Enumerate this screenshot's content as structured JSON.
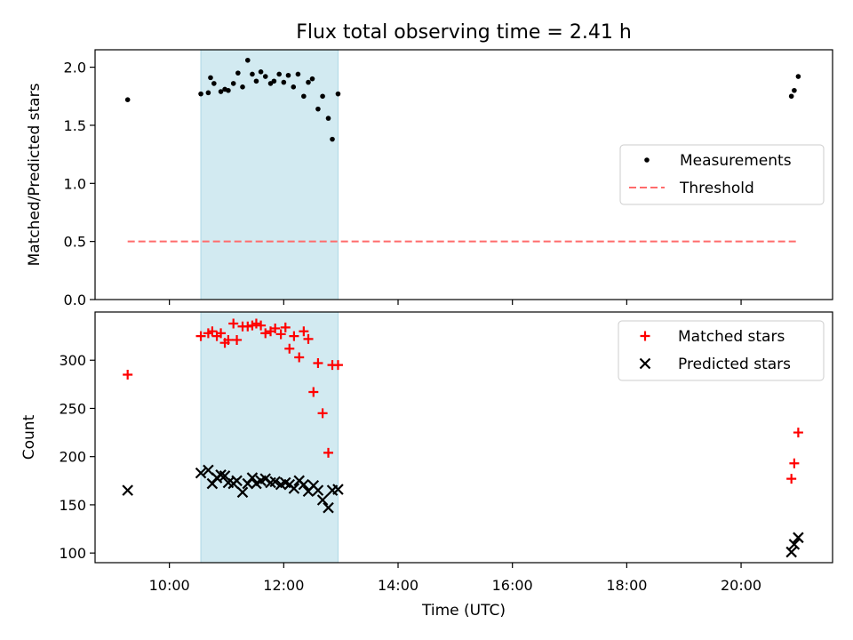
{
  "chart_data": {
    "title": "Flux total observing time = 2.41 h",
    "xlabel": "Time (UTC)",
    "x_ticks": [
      10,
      12,
      14,
      16,
      18,
      20
    ],
    "x_tick_labels": [
      "10:00",
      "12:00",
      "14:00",
      "16:00",
      "18:00",
      "20:00"
    ],
    "xlim_hours": [
      8.7,
      21.6
    ],
    "shaded_span_hours": [
      10.55,
      12.95
    ],
    "colors": {
      "shade": "#add8e6",
      "measurements": "#000000",
      "threshold": "#ff6b6b",
      "matched": "#ff0000",
      "predicted": "#000000"
    },
    "panels": [
      {
        "type": "scatter",
        "ylabel": "Matched/Predicted stars",
        "ylim": [
          0,
          2.15
        ],
        "y_ticks": [
          0.0,
          0.5,
          1.0,
          1.5,
          2.0
        ],
        "y_tick_labels": [
          "0.0",
          "0.5",
          "1.0",
          "1.5",
          "2.0"
        ],
        "legend_position": "center-right",
        "series": [
          {
            "name": "Measurements",
            "marker": "dot",
            "x": [
              9.27,
              10.55,
              10.68,
              10.72,
              10.78,
              10.9,
              10.97,
              11.03,
              11.12,
              11.2,
              11.28,
              11.37,
              11.45,
              11.52,
              11.6,
              11.68,
              11.77,
              11.83,
              11.92,
              12.0,
              12.08,
              12.17,
              12.25,
              12.35,
              12.43,
              12.5,
              12.6,
              12.68,
              12.78,
              12.85,
              12.95,
              20.88,
              20.93,
              21.0
            ],
            "y": [
              1.72,
              1.77,
              1.78,
              1.91,
              1.86,
              1.79,
              1.81,
              1.8,
              1.86,
              1.95,
              1.83,
              2.06,
              1.94,
              1.88,
              1.96,
              1.92,
              1.86,
              1.88,
              1.94,
              1.87,
              1.93,
              1.83,
              1.94,
              1.75,
              1.87,
              1.9,
              1.64,
              1.75,
              1.56,
              1.38,
              1.77,
              1.75,
              1.8,
              1.92
            ]
          },
          {
            "name": "Threshold",
            "marker": "dashed-line",
            "x": [
              9.27,
              21.0
            ],
            "y": [
              0.5,
              0.5
            ]
          }
        ]
      },
      {
        "type": "scatter",
        "ylabel": "Count",
        "ylim": [
          90,
          350
        ],
        "y_ticks": [
          100,
          150,
          200,
          250,
          300
        ],
        "y_tick_labels": [
          "100",
          "150",
          "200",
          "250",
          "300"
        ],
        "legend_position": "top-right",
        "series": [
          {
            "name": "Matched stars",
            "marker": "plus",
            "x": [
              9.27,
              10.55,
              10.68,
              10.75,
              10.83,
              10.9,
              10.97,
              11.03,
              11.12,
              11.18,
              11.28,
              11.37,
              11.45,
              11.52,
              11.6,
              11.68,
              11.77,
              11.85,
              11.95,
              12.03,
              12.1,
              12.18,
              12.27,
              12.35,
              12.43,
              12.52,
              12.6,
              12.68,
              12.78,
              12.85,
              12.95,
              20.88,
              20.93,
              21.0
            ],
            "y": [
              285,
              325,
              328,
              330,
              325,
              328,
              318,
              321,
              338,
              321,
              335,
              335,
              336,
              338,
              336,
              328,
              330,
              333,
              327,
              334,
              312,
              325,
              303,
              330,
              322,
              267,
              297,
              245,
              204,
              295,
              295,
              177,
              193,
              225
            ]
          },
          {
            "name": "Predicted stars",
            "marker": "x",
            "x": [
              9.27,
              10.55,
              10.68,
              10.75,
              10.83,
              10.9,
              10.97,
              11.03,
              11.12,
              11.18,
              11.28,
              11.37,
              11.45,
              11.52,
              11.6,
              11.68,
              11.77,
              11.85,
              11.95,
              12.03,
              12.1,
              12.18,
              12.27,
              12.35,
              12.43,
              12.52,
              12.6,
              12.68,
              12.78,
              12.85,
              12.95,
              20.88,
              20.93,
              21.0
            ],
            "y": [
              165,
              183,
              186,
              172,
              178,
              181,
              180,
              173,
              172,
              175,
              163,
              172,
              178,
              172,
              175,
              177,
              173,
              174,
              171,
              173,
              171,
              167,
              175,
              171,
              164,
              170,
              165,
              155,
              147,
              165,
              166,
              101,
              109,
              116
            ]
          }
        ]
      }
    ]
  }
}
